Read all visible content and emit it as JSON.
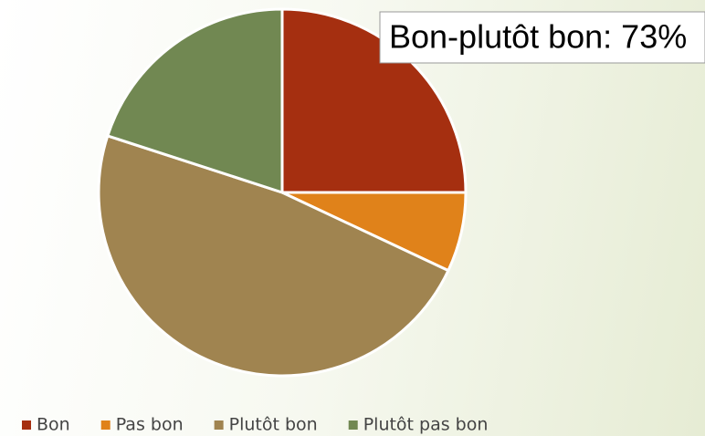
{
  "chart_data": {
    "type": "pie",
    "categories": [
      "Bon",
      "Pas bon",
      "Plutôt bon",
      "Plutôt pas bon"
    ],
    "values": [
      25,
      7,
      48,
      20
    ],
    "colors": [
      "#a52f10",
      "#e0821a",
      "#a08450",
      "#718852"
    ],
    "annotation": "Bon-plutôt bon: 73%",
    "legend": "bottom"
  }
}
